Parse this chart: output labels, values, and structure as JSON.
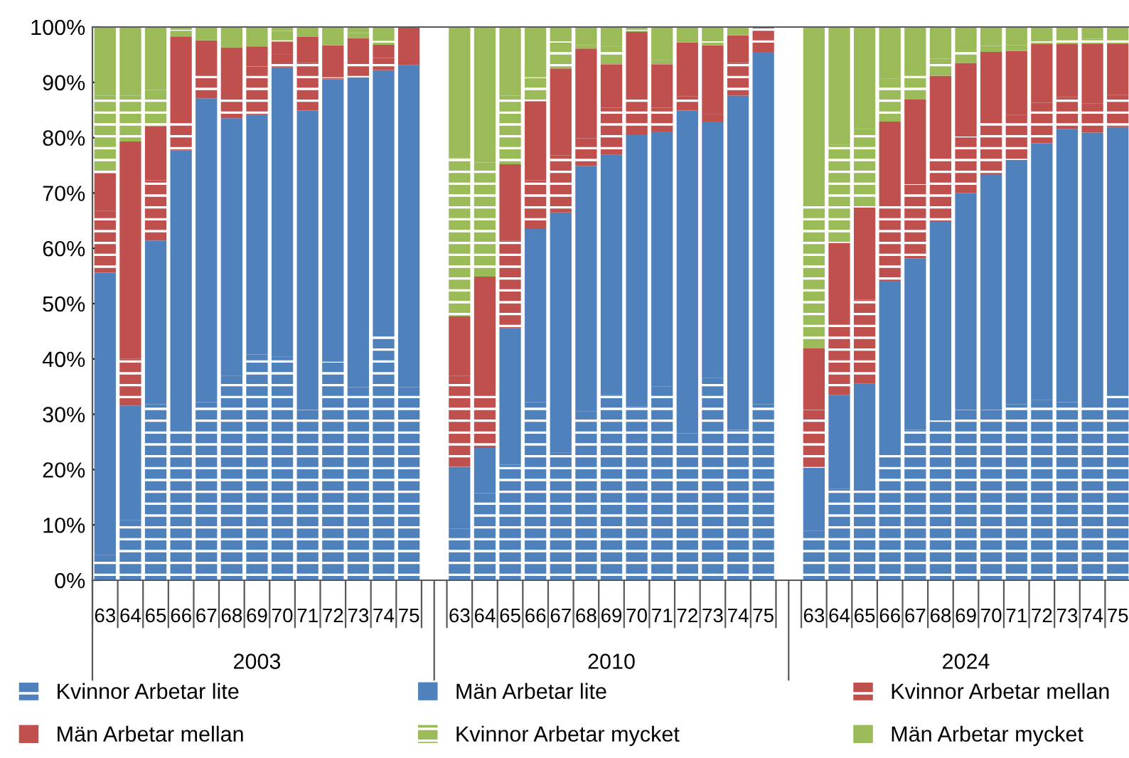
{
  "chart_data": {
    "type": "bar",
    "stacked": true,
    "legend": "bottom",
    "grid": false,
    "categories": [
      "63",
      "64",
      "65",
      "66",
      "67",
      "68",
      "69",
      "70",
      "71",
      "72",
      "73",
      "74",
      "75",
      null,
      "63",
      "64",
      "65",
      "66",
      "67",
      "68",
      "69",
      "70",
      "71",
      "72",
      "73",
      "74",
      "75",
      null,
      "63",
      "64",
      "65",
      "66",
      "67",
      "68",
      "69",
      "70",
      "71",
      "72",
      "73",
      "74",
      "75"
    ],
    "annotations": [
      "2003",
      "2010",
      "2024"
    ],
    "ylim": [
      0,
      100
    ],
    "yticks": [
      {
        "value": 0,
        "label": "0%"
      },
      {
        "value": 10,
        "label": "10%"
      },
      {
        "value": 20,
        "label": "20%"
      },
      {
        "value": 30,
        "label": "30%"
      },
      {
        "value": 40,
        "label": "40%"
      },
      {
        "value": 50,
        "label": "50%"
      },
      {
        "value": 60,
        "label": "60%"
      },
      {
        "value": 70,
        "label": "70%"
      },
      {
        "value": 80,
        "label": "80%"
      },
      {
        "value": 90,
        "label": "90%"
      },
      {
        "value": 100,
        "label": "100%"
      }
    ],
    "series": [
      {
        "name": "Kvinnor Arbetar lite",
        "color": "#4f81bd",
        "values": [
          4.6,
          10.9,
          31.8,
          28.4,
          32.2,
          37.0,
          40.8,
          40.4,
          30.8,
          39.5,
          34.9,
          44.6,
          34.9,
          null,
          9.3,
          15.8,
          20.9,
          32.2,
          23.1,
          30.5,
          33.5,
          31.4,
          35.0,
          26.5,
          36.6,
          27.2,
          31.8,
          null,
          8.9,
          16.5,
          16.2,
          24.3,
          27.2,
          28.9,
          30.8,
          30.8,
          31.8,
          32.6,
          32.2,
          32.0,
          34.2
        ]
      },
      {
        "name": "Män Arbetar lite",
        "color": "#4f81bd",
        "values": [
          51.0,
          20.7,
          29.6,
          49.3,
          54.9,
          46.5,
          43.3,
          52.3,
          54.1,
          51.1,
          56.0,
          47.6,
          58.2,
          null,
          11.2,
          8.1,
          24.7,
          31.3,
          43.4,
          44.4,
          43.4,
          49.2,
          46.1,
          58.4,
          46.3,
          60.4,
          63.7,
          null,
          11.4,
          17.0,
          19.3,
          29.8,
          31.0,
          36.0,
          39.2,
          42.6,
          44.2,
          46.4,
          49.4,
          48.9,
          47.7
        ]
      },
      {
        "name": "Kvinnor Arbetar mellan",
        "color": "#c0504d",
        "values": [
          11.2,
          8.4,
          10.9,
          5.6,
          4.8,
          4.8,
          8.8,
          2.3,
          8.6,
          0.3,
          2.8,
          2.2,
          0,
          null,
          16.5,
          10.3,
          15.8,
          8.8,
          10.3,
          5.0,
          8.5,
          7.7,
          4.3,
          2.6,
          1.4,
          5.9,
          4.5,
          null,
          10.5,
          12.7,
          15.2,
          13.5,
          13.4,
          12.1,
          10.2,
          9.5,
          8.1,
          7.3,
          5.7,
          5.3,
          5.8
        ]
      },
      {
        "name": "Män Arbetar mellan",
        "color": "#c0504d",
        "values": [
          6.8,
          39.3,
          9.8,
          15.0,
          5.7,
          8.0,
          3.6,
          2.4,
          4.7,
          5.8,
          4.3,
          2.4,
          6.9,
          null,
          10.7,
          20.7,
          13.8,
          14.3,
          15.7,
          16.2,
          7.9,
          10.8,
          7.9,
          9.7,
          12.4,
          5.0,
          0,
          null,
          11.1,
          14.8,
          16.7,
          15.3,
          15.3,
          14.2,
          13.3,
          12.6,
          11.6,
          10.6,
          9.6,
          10.8,
          9.3
        ]
      },
      {
        "name": "Kvinnor Arbetar mycket",
        "color": "#9bbb59",
        "values": [
          14.0,
          8.3,
          6.5,
          1.2,
          0,
          0,
          0,
          1.9,
          0,
          0,
          0.9,
          0.7,
          0,
          null,
          28.6,
          20.6,
          12.4,
          4.3,
          4.9,
          0.6,
          3.2,
          0.4,
          0.7,
          0,
          0.7,
          0,
          0,
          null,
          26.6,
          17.7,
          14.2,
          7.8,
          5.0,
          3.1,
          2.4,
          1.1,
          1.0,
          0.5,
          0.7,
          0.9,
          1.2
        ]
      },
      {
        "name": "Män Arbetar mycket",
        "color": "#9bbb59",
        "values": [
          12.4,
          12.4,
          11.4,
          0.5,
          2.4,
          3.7,
          3.5,
          0.7,
          1.8,
          3.3,
          1.1,
          2.5,
          0,
          null,
          23.7,
          24.5,
          12.4,
          9.1,
          2.6,
          3.3,
          3.5,
          0.5,
          6.0,
          2.8,
          2.6,
          1.5,
          0,
          null,
          31.5,
          21.3,
          18.4,
          9.3,
          8.1,
          5.7,
          4.1,
          3.4,
          3.3,
          2.6,
          2.4,
          2.1,
          1.8
        ]
      }
    ]
  }
}
